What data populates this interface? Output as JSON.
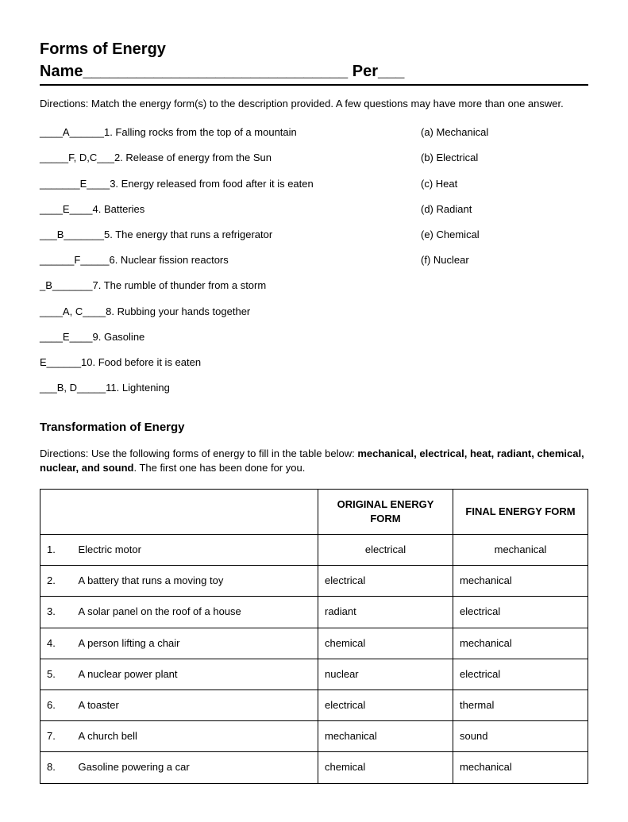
{
  "header": {
    "title1": "Forms of Energy",
    "name_label": "Name",
    "per_label": "Per"
  },
  "section1": {
    "directions": "Directions:  Match the energy form(s) to the description provided.  A few questions may have more than one answer.",
    "items": [
      {
        "ans": "____A______",
        "num": "1.",
        "text": "Falling rocks from the top of a mountain",
        "key": "(a) Mechanical"
      },
      {
        "ans": "_____F, D,C___",
        "num": "2.",
        "text": "Release of energy from the Sun",
        "key": "(b) Electrical"
      },
      {
        "ans": "_______E____",
        "num": "3.",
        "text": "Energy released from food after it is eaten",
        "key": "(c) Heat"
      },
      {
        "ans": "____E____",
        "num": "4.",
        "text": "Batteries",
        "key": "(d) Radiant"
      },
      {
        "ans": "___B_______",
        "num": "5.",
        "text": "The energy that runs a refrigerator",
        "key": "(e) Chemical"
      },
      {
        "ans": "______F_____",
        "num": "6.",
        "text": "Nuclear fission reactors",
        "key": "(f) Nuclear"
      },
      {
        "ans": "_B_______",
        "num": "7.",
        "text": "The rumble of thunder from a storm",
        "key": ""
      },
      {
        "ans": "____A, C____",
        "num": "8.",
        "text": "Rubbing your hands together",
        "key": ""
      },
      {
        "ans": "____E____",
        "num": "9.",
        "text": "Gasoline",
        "key": ""
      },
      {
        "ans": "E______",
        "num": "10.",
        "text": "Food before it is eaten",
        "key": ""
      },
      {
        "ans": "___B, D_____",
        "num": "11.",
        "text": "Lightening",
        "key": ""
      }
    ]
  },
  "section2": {
    "heading": "Transformation of Energy",
    "directions_pre": "Directions: Use the following forms of energy to fill in the table below: ",
    "directions_bold": "mechanical, electrical, heat, radiant, chemical, nuclear, and sound",
    "directions_post": ".  The first one has been done for you.",
    "table": {
      "col_blank": "",
      "col_orig": "ORIGINAL ENERGY FORM",
      "col_final": "FINAL ENERGY FORM",
      "rows": [
        {
          "num": "1.",
          "desc": "Electric motor",
          "orig": "electrical",
          "final": "mechanical",
          "first": true
        },
        {
          "num": "2.",
          "desc": "A battery that runs a moving toy",
          "orig": "electrical",
          "final": "mechanical"
        },
        {
          "num": "3.",
          "desc": "A solar panel on the roof of a house",
          "orig": "radiant",
          "final": "electrical"
        },
        {
          "num": "4.",
          "desc": "A person lifting a chair",
          "orig": "chemical",
          "final": "mechanical"
        },
        {
          "num": "5.",
          "desc": "A nuclear power plant",
          "orig": "nuclear",
          "final": "electrical"
        },
        {
          "num": "6.",
          "desc": "A toaster",
          "orig": "electrical",
          "final": "thermal"
        },
        {
          "num": "7.",
          "desc": "A church bell",
          "orig": "mechanical",
          "final": "sound"
        },
        {
          "num": "8.",
          "desc": "Gasoline powering a car",
          "orig": "chemical",
          "final": "mechanical"
        }
      ]
    }
  }
}
